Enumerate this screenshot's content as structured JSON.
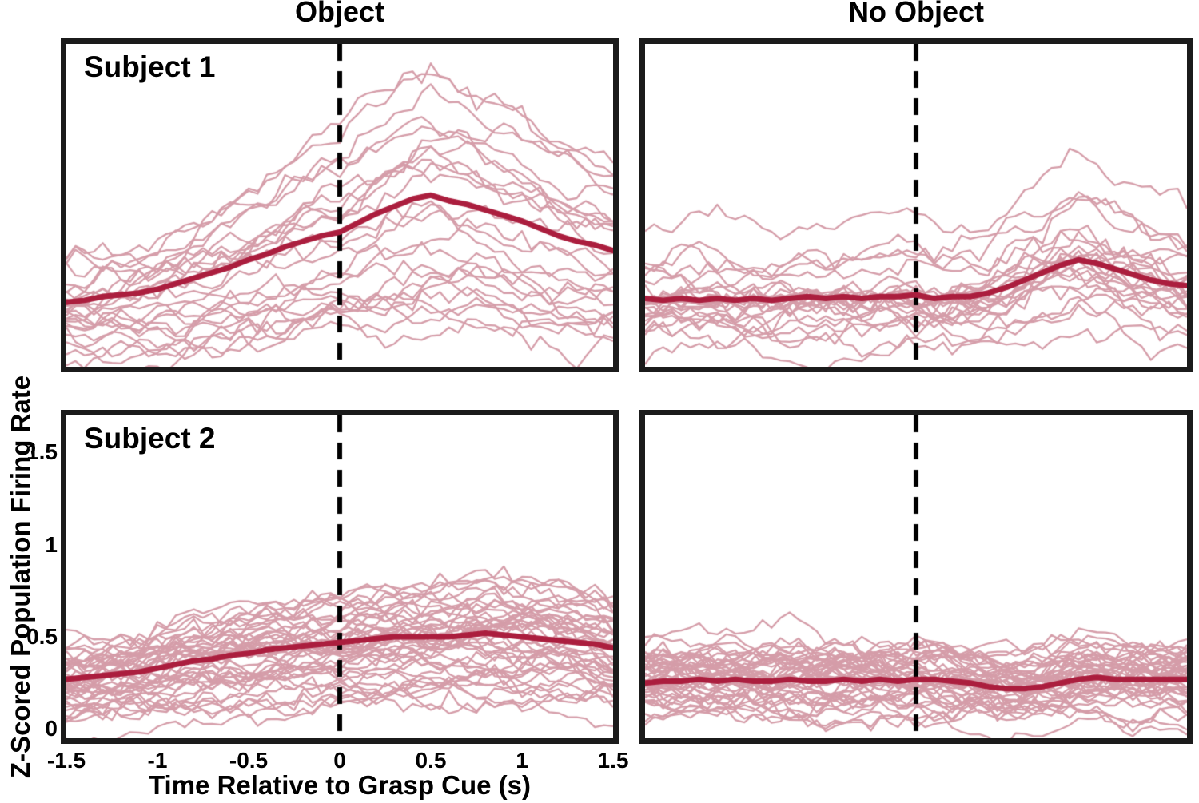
{
  "figure": {
    "column_titles": [
      "Object",
      "No Object"
    ],
    "xlabel": "Time Relative to Grasp Cue (s)",
    "ylabel": "Z-Scored Population Firing Rate"
  },
  "colors": {
    "trial_trace": "#d59da9",
    "mean_trace": "#ab1e3e",
    "event_line": "#000000",
    "panel_border": "#1b1b1b",
    "text": "#000000",
    "background": "#ffffff"
  },
  "axes": {
    "xlim": [
      -1.5,
      1.5
    ],
    "ylim": [
      -0.05,
      1.7
    ],
    "xticks": [
      -1.5,
      -1,
      -0.5,
      0,
      0.5,
      1,
      1.5
    ],
    "yticks": [
      0,
      0.5,
      1,
      1.5
    ],
    "event_time": 0,
    "grid": false
  },
  "chart_data": [
    {
      "type": "line",
      "subject": "Subject 1",
      "condition": "Object",
      "panel_label": "Subject 1",
      "x": [
        -1.5,
        -1.4,
        -1.3,
        -1.2,
        -1.1,
        -1.0,
        -0.9,
        -0.8,
        -0.7,
        -0.6,
        -0.5,
        -0.4,
        -0.3,
        -0.2,
        -0.1,
        0.0,
        0.1,
        0.2,
        0.3,
        0.4,
        0.5,
        0.6,
        0.7,
        0.8,
        0.9,
        1.0,
        1.1,
        1.2,
        1.3,
        1.4,
        1.5
      ],
      "mean": [
        0.3,
        0.31,
        0.33,
        0.34,
        0.35,
        0.37,
        0.4,
        0.43,
        0.46,
        0.49,
        0.53,
        0.56,
        0.6,
        0.63,
        0.66,
        0.68,
        0.73,
        0.78,
        0.82,
        0.86,
        0.88,
        0.85,
        0.83,
        0.8,
        0.77,
        0.74,
        0.7,
        0.66,
        0.63,
        0.61,
        0.58
      ],
      "trials": {
        "count": 26,
        "seed": 7,
        "gain": [
          0.25,
          1.95
        ],
        "offset": [
          -0.12,
          0.12
        ],
        "noise_sd": 0.06,
        "smooth": 0.88
      }
    },
    {
      "type": "line",
      "subject": "Subject 1",
      "condition": "No Object",
      "panel_label": "",
      "x": [
        -1.5,
        -1.4,
        -1.3,
        -1.2,
        -1.1,
        -1.0,
        -0.9,
        -0.8,
        -0.7,
        -0.6,
        -0.5,
        -0.4,
        -0.3,
        -0.2,
        -0.1,
        0.0,
        0.1,
        0.2,
        0.3,
        0.4,
        0.5,
        0.6,
        0.7,
        0.8,
        0.9,
        1.0,
        1.1,
        1.2,
        1.3,
        1.4,
        1.5
      ],
      "mean": [
        0.32,
        0.31,
        0.32,
        0.31,
        0.32,
        0.31,
        0.32,
        0.31,
        0.32,
        0.33,
        0.32,
        0.33,
        0.32,
        0.33,
        0.33,
        0.34,
        0.32,
        0.33,
        0.33,
        0.35,
        0.38,
        0.42,
        0.46,
        0.5,
        0.53,
        0.51,
        0.48,
        0.45,
        0.42,
        0.4,
        0.39
      ],
      "trials": {
        "count": 26,
        "seed": 13,
        "gain": [
          0.3,
          1.8
        ],
        "offset": [
          -0.15,
          0.12
        ],
        "noise_sd": 0.06,
        "smooth": 0.88
      }
    },
    {
      "type": "line",
      "subject": "Subject 2",
      "condition": "Object",
      "panel_label": "Subject 2",
      "x": [
        -1.5,
        -1.4,
        -1.3,
        -1.2,
        -1.1,
        -1.0,
        -0.9,
        -0.8,
        -0.7,
        -0.6,
        -0.5,
        -0.4,
        -0.3,
        -0.2,
        -0.1,
        0.0,
        0.1,
        0.2,
        0.3,
        0.4,
        0.5,
        0.6,
        0.7,
        0.8,
        0.9,
        1.0,
        1.1,
        1.2,
        1.3,
        1.4,
        1.5
      ],
      "mean": [
        0.27,
        0.28,
        0.29,
        0.3,
        0.31,
        0.33,
        0.35,
        0.37,
        0.38,
        0.4,
        0.41,
        0.43,
        0.44,
        0.45,
        0.46,
        0.47,
        0.48,
        0.49,
        0.5,
        0.5,
        0.5,
        0.5,
        0.51,
        0.52,
        0.51,
        0.5,
        0.49,
        0.48,
        0.47,
        0.46,
        0.44
      ],
      "trials": {
        "count": 46,
        "seed": 21,
        "gain": [
          0.45,
          1.55
        ],
        "offset": [
          -0.16,
          0.16
        ],
        "noise_sd": 0.05,
        "smooth": 0.85
      }
    },
    {
      "type": "line",
      "subject": "Subject 2",
      "condition": "No Object",
      "panel_label": "",
      "x": [
        -1.5,
        -1.4,
        -1.3,
        -1.2,
        -1.1,
        -1.0,
        -0.9,
        -0.8,
        -0.7,
        -0.6,
        -0.5,
        -0.4,
        -0.3,
        -0.2,
        -0.1,
        0.0,
        0.1,
        0.2,
        0.3,
        0.4,
        0.5,
        0.6,
        0.7,
        0.8,
        0.9,
        1.0,
        1.1,
        1.2,
        1.3,
        1.4,
        1.5
      ],
      "mean": [
        0.25,
        0.26,
        0.26,
        0.27,
        0.26,
        0.27,
        0.26,
        0.26,
        0.27,
        0.26,
        0.26,
        0.27,
        0.26,
        0.27,
        0.26,
        0.27,
        0.27,
        0.26,
        0.25,
        0.23,
        0.22,
        0.22,
        0.23,
        0.25,
        0.27,
        0.28,
        0.27,
        0.27,
        0.27,
        0.27,
        0.27
      ],
      "trials": {
        "count": 46,
        "seed": 42,
        "gain": [
          0.4,
          1.6
        ],
        "offset": [
          -0.14,
          0.16
        ],
        "noise_sd": 0.05,
        "smooth": 0.85
      }
    }
  ]
}
